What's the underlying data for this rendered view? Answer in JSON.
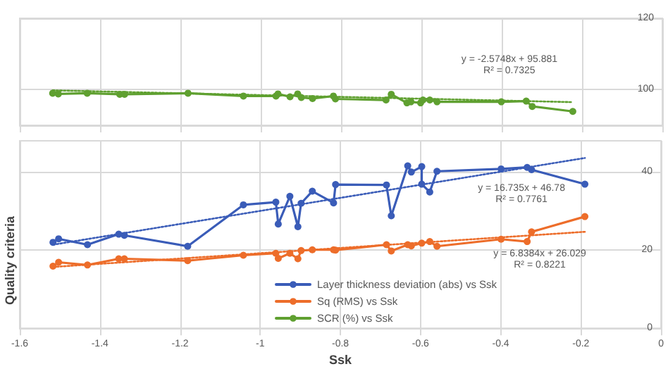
{
  "chart_data": [
    {
      "type": "line",
      "xlim": [
        -1.6,
        0
      ],
      "xticks": [
        -1.6,
        -1.4,
        -1.2,
        -1,
        -0.8,
        -0.6,
        -0.4,
        -0.2,
        0
      ],
      "ylim": [
        90,
        120
      ],
      "yticks": [
        100,
        120
      ],
      "tick_labels": "y",
      "grid": true,
      "marker": "circle",
      "series": [
        {
          "name": "SCR (%) vs Ssk",
          "color": "#5fa030",
          "x": [
            -1.518,
            -1.504,
            -1.432,
            -1.351,
            -1.339,
            -1.181,
            -1.043,
            -0.962,
            -0.957,
            -0.927,
            -0.908,
            -0.899,
            -0.871,
            -0.819,
            -0.814,
            -0.688,
            -0.675,
            -0.636,
            -0.626,
            -0.602,
            -0.596,
            -0.579,
            -0.561,
            -0.401,
            -0.339,
            -0.324,
            -0.223
          ],
          "values": [
            99.0,
            98.8,
            99.0,
            98.7,
            98.7,
            99.0,
            98.2,
            98.2,
            98.8,
            98.0,
            98.8,
            97.8,
            97.5,
            98.2,
            97.4,
            97.1,
            98.7,
            96.3,
            96.6,
            96.3,
            97.1,
            97.1,
            96.6,
            96.6,
            96.8,
            95.3,
            93.9
          ]
        },
        {
          "type": "line",
          "color": "#5fa030",
          "line_style": "dotted",
          "marker": "none",
          "x": [
            -1.518,
            -0.223
          ],
          "values": [
            99.8,
            96.5
          ]
        }
      ],
      "annotations": [
        "y = -2.5748x + 95.881",
        "R² = 0.7325"
      ]
    },
    {
      "type": "line",
      "xlim": [
        -1.6,
        0
      ],
      "xticks": [
        -1.6,
        -1.4,
        -1.2,
        -1,
        -0.8,
        -0.6,
        -0.4,
        -0.2,
        0
      ],
      "ylim": [
        0,
        48
      ],
      "yticks": [
        0,
        20,
        40
      ],
      "grid": true,
      "marker": "circle",
      "legend": "bottom",
      "xlabel": "Ssk",
      "ylabel": "Quality criteria",
      "series": [
        {
          "name": "Layer thickness deviation (abs) vs Ssk",
          "color": "#3a5cb8",
          "x": [
            -1.517,
            -1.503,
            -1.431,
            -1.353,
            -1.339,
            -1.181,
            -1.042,
            -0.961,
            -0.955,
            -0.926,
            -0.906,
            -0.898,
            -0.87,
            -0.817,
            -0.812,
            -0.685,
            -0.673,
            -0.632,
            -0.623,
            -0.597,
            -0.597,
            -0.577,
            -0.559,
            -0.399,
            -0.334,
            -0.323,
            -0.19
          ],
          "values": [
            22.0,
            22.9,
            21.4,
            24.1,
            23.8,
            21.0,
            31.6,
            32.3,
            26.7,
            33.8,
            26.0,
            32.0,
            35.1,
            32.1,
            36.8,
            36.7,
            28.8,
            41.6,
            40.0,
            41.4,
            36.9,
            34.9,
            40.2,
            40.8,
            41.2,
            40.6,
            36.9
          ]
        },
        {
          "name": "Sq (RMS) vs Ssk",
          "color": "#ed6d2a",
          "x": [
            -1.517,
            -1.503,
            -1.431,
            -1.353,
            -1.339,
            -1.181,
            -1.042,
            -0.961,
            -0.955,
            -0.926,
            -0.906,
            -0.898,
            -0.87,
            -0.817,
            -0.812,
            -0.685,
            -0.673,
            -0.632,
            -0.623,
            -0.597,
            -0.577,
            -0.559,
            -0.399,
            -0.334,
            -0.323,
            -0.19
          ],
          "values": [
            15.9,
            16.9,
            16.2,
            17.8,
            17.8,
            17.3,
            18.7,
            19.2,
            17.9,
            19.2,
            17.8,
            19.9,
            20.1,
            20.1,
            20.0,
            21.4,
            19.8,
            21.4,
            21.1,
            21.8,
            22.2,
            21.0,
            22.8,
            22.2,
            24.7,
            28.6
          ]
        },
        {
          "type": "line",
          "color": "#3a5cb8",
          "line_style": "dotted",
          "marker": "none",
          "x": [
            -1.517,
            -0.19
          ],
          "values": [
            21.4,
            43.6
          ]
        },
        {
          "type": "line",
          "color": "#ed6d2a",
          "line_style": "dotted",
          "marker": "none",
          "x": [
            -1.517,
            -0.19
          ],
          "values": [
            15.7,
            24.7
          ]
        }
      ],
      "annotations": [
        "y = 16.735x + 46.78",
        "R² = 0.7761",
        "y = 6.8384x + 26.029",
        "R² = 0.8221"
      ]
    }
  ]
}
